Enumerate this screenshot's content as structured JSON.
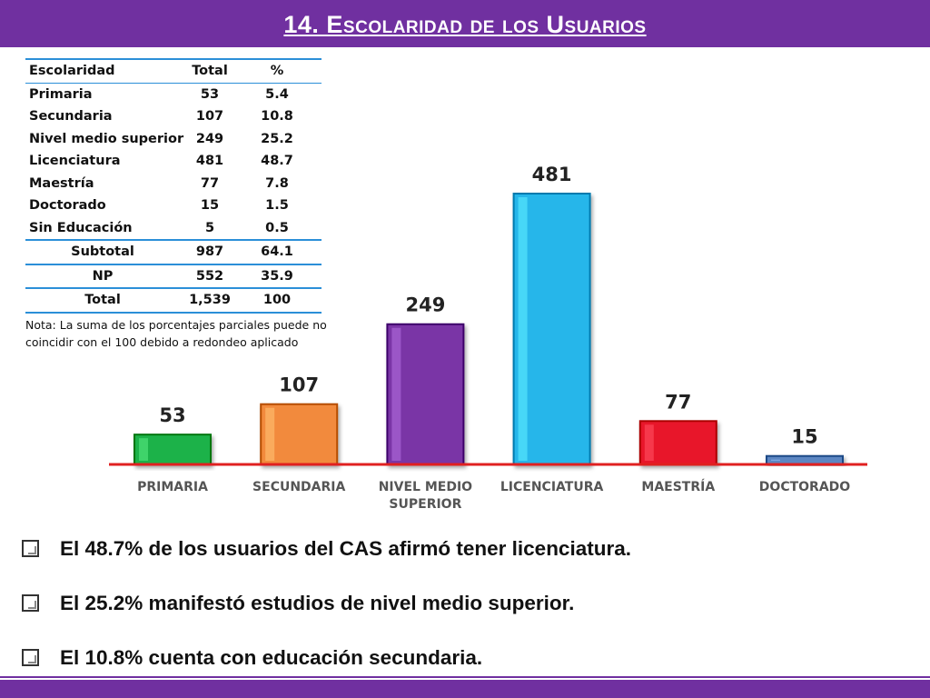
{
  "header": {
    "title": "14. Escolaridad de los Usuarios"
  },
  "table": {
    "headers": [
      "Escolaridad",
      "Total",
      "%"
    ],
    "rows": [
      [
        "Primaria",
        "53",
        "5.4"
      ],
      [
        "Secundaria",
        "107",
        "10.8"
      ],
      [
        "Nivel medio superior",
        "249",
        "25.2"
      ],
      [
        "Licenciatura",
        "481",
        "48.7"
      ],
      [
        "Maestría",
        "77",
        "7.8"
      ],
      [
        "Doctorado",
        "15",
        "1.5"
      ],
      [
        "Sin Educación",
        "5",
        "0.5"
      ]
    ],
    "subtotal": [
      "Subtotal",
      "987",
      "64.1"
    ],
    "np": [
      "NP",
      "552",
      "35.9"
    ],
    "total": [
      "Total",
      "1,539",
      "100"
    ]
  },
  "note": "Nota: La suma de los porcentajes parciales puede no coincidir con el 100 debido a redondeo aplicado",
  "chart_data": {
    "type": "bar",
    "categories": [
      "PRIMARIA",
      "SECUNDARIA",
      "NIVEL MEDIO SUPERIOR",
      "LICENCIATURA",
      "MAESTRÍA",
      "DOCTORADO"
    ],
    "category_lines": [
      [
        "PRIMARIA"
      ],
      [
        "SECUNDARIA"
      ],
      [
        "NIVEL MEDIO",
        "SUPERIOR"
      ],
      [
        "LICENCIATURA"
      ],
      [
        "MAESTRÍA"
      ],
      [
        "DOCTORADO"
      ]
    ],
    "values": [
      53,
      107,
      249,
      481,
      77,
      15
    ],
    "colors": [
      "#1fb24a",
      "#f28a3c",
      "#7a35a6",
      "#27b6ea",
      "#e8192c",
      "#5b86c2"
    ],
    "axis_color": "#e02020",
    "ylim": [
      0,
      481
    ],
    "grid": false,
    "legend": "none"
  },
  "bullets": [
    "El 48.7% de los usuarios del CAS afirmó tener licenciatura.",
    "El 25.2% manifestó estudios de nivel medio superior.",
    "El 10.8% cuenta con educación secundaria."
  ]
}
